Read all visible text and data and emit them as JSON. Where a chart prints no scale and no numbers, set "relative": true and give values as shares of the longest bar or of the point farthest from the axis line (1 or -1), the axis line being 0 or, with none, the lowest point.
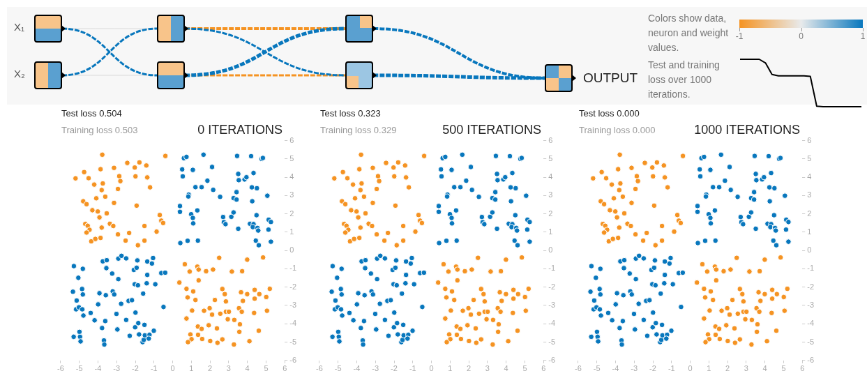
{
  "chart_data": [
    {
      "type": "other",
      "annotations": [
        "X₁",
        "X₂",
        "OUTPUT",
        "Colors show data, neuron and weight values.",
        "-1",
        "0",
        "1"
      ],
      "colors": [
        "#f59322",
        "#e8eaeb",
        "#0877bd"
      ]
    },
    {
      "type": "line",
      "relative": true,
      "title": "Test and training loss over 1000 iterations.",
      "categories": [
        null,
        null,
        null,
        null,
        null,
        null,
        null,
        null,
        null,
        null,
        null,
        null,
        null,
        null,
        null,
        null,
        null,
        null,
        null,
        null
      ],
      "series": [
        {
          "color": "#000000",
          "values": [
            1,
            1,
            1,
            1,
            0.92,
            0.68,
            0.65,
            0.65,
            0.65,
            0.65,
            0.65,
            0.64,
            0.01,
            0,
            0,
            0,
            0,
            0,
            0,
            0
          ]
        }
      ],
      "marker": "none",
      "line_style": "solid"
    },
    {
      "type": "scatter",
      "title": "Test loss 0.504",
      "subtitle": "Training loss 0.503",
      "annotations": [
        "0 ITERATIONS"
      ],
      "xlim": [
        -6,
        6
      ],
      "ylim": [
        -6,
        6
      ],
      "xticks": [
        -6,
        -5,
        -4,
        -3,
        -2,
        -1,
        0,
        1,
        2,
        3,
        4,
        5,
        6
      ],
      "yticks": [
        -6,
        -5,
        -4,
        -3,
        -2,
        -1,
        0,
        1,
        2,
        3,
        4,
        5,
        6
      ],
      "grid": false,
      "legend": false,
      "marker": "circle",
      "series": [
        {
          "color": "#f59322",
          "x": [
            -3.77,
            -0.39,
            -5.2,
            -4.74,
            -4.5,
            -4.2,
            -3.86,
            -3.74,
            -3.8,
            -3.14,
            -2.86,
            -2.8,
            -2.93,
            -2.43,
            -2.03,
            -1.78,
            -1.41,
            -1.99,
            -1.36,
            -1.21,
            -4.09,
            -4.79,
            -4.61,
            -3.61,
            -3.14,
            -4.3,
            -4.01,
            -3.92,
            -3.53,
            -1.93,
            -4.68,
            -4.55,
            -4.45,
            -4.61,
            -3.8,
            -3.36,
            -3.18,
            -2.93,
            -2.33,
            -2.52,
            -1.86,
            -1.51,
            -1.51,
            -0.86,
            -0.69,
            -0.61,
            -0.51,
            -4.36,
            -4.14,
            -3.86,
            0.65,
            0.36,
            0.91,
            1.32,
            1.39,
            1.39,
            1.79,
            2.16,
            2.49,
            3.17,
            3.72,
            3.99,
            4.84,
            0.74,
            1.1,
            0.8,
            1.22,
            2.26,
            2.66,
            2.79,
            2.85,
            3.66,
            3.99,
            4.39,
            4.64,
            5.2,
            5.01,
            4.39,
            3.76,
            1.04,
            1.68,
            1.98,
            2.11,
            2.55,
            2.85,
            3.01,
            3.55,
            3.7,
            4.36,
            5.05,
            0.74,
            2.95,
            3.3,
            3.6,
            1.35,
            1.55,
            1.93,
            2.37,
            3.57,
            4.61,
            0.95,
            1.36,
            1.01,
            0.82,
            1.58,
            2.01,
            2.4,
            2.66,
            3.28,
            4.11
          ],
          "values": [
            5.23,
            5.16,
            3.94,
            4.28,
            3.95,
            3.6,
            4.44,
            3.66,
            3.3,
            4.51,
            4.06,
            3.79,
            3.36,
            4.78,
            4.53,
            4.81,
            4.64,
            4.05,
            3.99,
            3.45,
            2.85,
            2.69,
            2.53,
            2.94,
            2.6,
            2.2,
            2.13,
            1.81,
            2.03,
            2.45,
            1.45,
            1.35,
            1.13,
            0.98,
            1.25,
            1.46,
            1.34,
            0.88,
            0.96,
            0.54,
            0.29,
            1.34,
            0.54,
            1.03,
            1.94,
            1.63,
            1.5,
            0.5,
            0.63,
            0.69,
            -0.75,
            -1.75,
            -1.15,
            -0.88,
            -1.04,
            -1.63,
            -1.13,
            -1.04,
            -0.4,
            -1.15,
            -1.13,
            -0.5,
            -0.38,
            -2.09,
            -2.23,
            -2.56,
            -2.7,
            -2.7,
            -2.1,
            -2.38,
            -2.78,
            -2.28,
            -2.38,
            -2.15,
            -2.38,
            -2.09,
            -2.54,
            -2.63,
            -2.75,
            -3.28,
            -3.29,
            -3.15,
            -3.5,
            -3.45,
            -3.34,
            -3.34,
            -3.15,
            -3.34,
            -3.41,
            -3.29,
            -3.71,
            -3.75,
            -3.79,
            -4.03,
            -4.15,
            -4.28,
            -4.08,
            -4.25,
            -4.44,
            -4.38,
            -4.58,
            -4.6,
            -4.84,
            -5.0,
            -4.83,
            -4.94,
            -5.04,
            -4.85,
            -5.13,
            -4.95
          ]
        },
        {
          "color": "#0877bd",
          "x": [
            0.6,
            0.74,
            1.65,
            3.45,
            4.2,
            4.76,
            4.83,
            0.51,
            1.08,
            2.11,
            0.54,
            3.51,
            4.33,
            3.54,
            3.85,
            3.95,
            1.86,
            1.22,
            1.55,
            2.17,
            4.24,
            4.51,
            0.86,
            0.84,
            2.54,
            3.26,
            3.42,
            3.42,
            5.07,
            4.26,
            0.39,
            0.39,
            1.32,
            0.99,
            1.08,
            1.1,
            2.7,
            2.74,
            2.83,
            3.14,
            3.26,
            4.49,
            4.14,
            4.33,
            4.29,
            4.54,
            4.58,
            3.51,
            5.14,
            5.26,
            5.13,
            5.26,
            4.45,
            4.61,
            0.41,
            0.8,
            1.35,
            -5.29,
            -4.81,
            -5.05,
            -5.34,
            -4.85,
            -4.81,
            -5.14,
            -5.17,
            -5.02,
            -4.84,
            -4.78,
            -4.39,
            -4.18,
            -5.3,
            -4.99,
            -4.96,
            -4.93,
            -3.68,
            -3.66,
            -3.78,
            -3.61,
            -3.99,
            -3.92,
            -3.58,
            -3.21,
            -3.13,
            -3.74,
            -3.53,
            -3.55,
            -3.24,
            -2.91,
            -2.91,
            -2.74,
            -2.49,
            -2.76,
            -3.01,
            -2.96,
            -2.49,
            -2.3,
            -2.36,
            -2.18,
            -1.99,
            -2.01,
            -1.84,
            -1.8,
            -1.61,
            -1.55,
            -1.49,
            -1.51,
            -1.24,
            -1.28,
            -1.01,
            -2.08,
            -1.93,
            -1.89,
            -2.03,
            -1.86,
            -1.58,
            -1.36,
            -1.11,
            -1.05,
            -1.36,
            -1.39,
            -0.93,
            -0.61,
            -0.4,
            -0.49
          ],
          "values": [
            5.04,
            5.11,
            5.23,
            5.16,
            5.15,
            5.0,
            5.05,
            4.43,
            4.4,
            4.56,
            4.05,
            4.18,
            4.23,
            3.84,
            3.88,
            4.0,
            3.81,
            3.46,
            3.46,
            3.31,
            3.45,
            3.4,
            3.05,
            2.95,
            2.93,
            2.86,
            2.78,
            3.19,
            2.99,
            2.69,
            2.43,
            2.11,
            2.19,
            1.98,
            1.78,
            1.48,
            1.83,
            1.55,
            1.44,
            1.84,
            2.08,
            1.93,
            1.46,
            1.44,
            1.28,
            1.23,
            1.09,
            1.19,
            1.68,
            1.56,
            1.14,
            0.48,
            0.54,
            0.29,
            0.41,
            0.53,
            0.54,
            -0.85,
            -1.0,
            -1.49,
            -2.25,
            -2.1,
            -2.4,
            -2.73,
            -3.21,
            -3.1,
            -3.21,
            -3.55,
            -3.41,
            -3.81,
            -4.71,
            -4.44,
            -4.71,
            -4.96,
            -4.91,
            -5.13,
            -4.23,
            -3.85,
            -2.94,
            -2.33,
            -2.44,
            -2.23,
            -2.4,
            -0.59,
            -0.53,
            -0.96,
            -1.26,
            -1.56,
            -0.44,
            -0.29,
            -0.43,
            -2.91,
            -3.46,
            -4.31,
            -3.79,
            -4.66,
            -2.75,
            -2.71,
            -3.39,
            -4.19,
            -3.96,
            -4.58,
            -5.0,
            -4.88,
            -4.63,
            -4.06,
            -4.6,
            -4.81,
            -4.38,
            -1.06,
            -0.94,
            -0.54,
            -1.84,
            -1.9,
            -2.35,
            -0.6,
            -0.71,
            -0.41,
            -1.33,
            -1.79,
            -1.84,
            -1.23,
            -1.21,
            -3.08
          ]
        }
      ]
    },
    {
      "type": "scatter",
      "title": "Test loss 0.323",
      "subtitle": "Training loss 0.329",
      "annotations": [
        "500 ITERATIONS"
      ],
      "xlim": [
        -6,
        6
      ],
      "ylim": [
        -6,
        6
      ],
      "xticks": [
        -6,
        -5,
        -4,
        -3,
        -2,
        -1,
        0,
        1,
        2,
        3,
        4,
        5,
        6
      ],
      "yticks": [
        -6,
        -5,
        -4,
        -3,
        -2,
        -1,
        0,
        1,
        2,
        3,
        4,
        5,
        6
      ],
      "grid": false,
      "legend": false,
      "marker": "circle",
      "series": [
        {
          "color": "#f59322",
          "x": [
            -3.77,
            -0.39,
            -5.2,
            -4.74,
            -4.5,
            -4.2,
            -3.86,
            -3.74,
            -3.8,
            -3.14,
            -2.86,
            -2.8,
            -2.93,
            -2.43,
            -2.03,
            -1.78,
            -1.41,
            -1.99,
            -1.36,
            -1.21,
            -4.09,
            -4.79,
            -4.61,
            -3.61,
            -3.14,
            -4.3,
            -4.01,
            -3.92,
            -3.53,
            -1.93,
            -4.68,
            -4.55,
            -4.45,
            -4.61,
            -3.8,
            -3.36,
            -3.18,
            -2.93,
            -2.33,
            -2.52,
            -1.86,
            -1.51,
            -1.51,
            -0.86,
            -0.69,
            -0.61,
            -0.51,
            -4.36,
            -4.14,
            -3.86,
            0.65,
            0.36,
            0.91,
            1.32,
            1.39,
            1.39,
            1.79,
            2.16,
            2.49,
            3.17,
            3.72,
            3.99,
            4.84,
            0.74,
            1.1,
            0.8,
            1.22,
            2.26,
            2.66,
            2.79,
            2.85,
            3.66,
            3.99,
            4.39,
            4.64,
            5.2,
            5.01,
            4.39,
            3.76,
            1.04,
            1.68,
            1.98,
            2.11,
            2.55,
            2.85,
            3.01,
            3.55,
            3.7,
            4.36,
            5.05,
            0.74,
            2.95,
            3.3,
            3.6,
            1.35,
            1.55,
            1.93,
            2.37,
            3.57,
            4.61,
            0.95,
            1.36,
            1.01,
            0.82,
            1.58,
            2.01,
            2.4,
            2.66,
            3.28,
            4.11
          ],
          "values": [
            5.23,
            5.16,
            3.94,
            4.28,
            3.95,
            3.6,
            4.44,
            3.66,
            3.3,
            4.51,
            4.06,
            3.79,
            3.36,
            4.78,
            4.53,
            4.81,
            4.64,
            4.05,
            3.99,
            3.45,
            2.85,
            2.69,
            2.53,
            2.94,
            2.6,
            2.2,
            2.13,
            1.81,
            2.03,
            2.45,
            1.45,
            1.35,
            1.13,
            0.98,
            1.25,
            1.46,
            1.34,
            0.88,
            0.96,
            0.54,
            0.29,
            1.34,
            0.54,
            1.03,
            1.94,
            1.63,
            1.5,
            0.5,
            0.63,
            0.69,
            -0.75,
            -1.75,
            -1.15,
            -0.88,
            -1.04,
            -1.63,
            -1.13,
            -1.04,
            -0.4,
            -1.15,
            -1.13,
            -0.5,
            -0.38,
            -2.09,
            -2.23,
            -2.56,
            -2.7,
            -2.7,
            -2.1,
            -2.38,
            -2.78,
            -2.28,
            -2.38,
            -2.15,
            -2.38,
            -2.09,
            -2.54,
            -2.63,
            -2.75,
            -3.28,
            -3.29,
            -3.15,
            -3.5,
            -3.45,
            -3.34,
            -3.34,
            -3.15,
            -3.34,
            -3.41,
            -3.29,
            -3.71,
            -3.75,
            -3.79,
            -4.03,
            -4.15,
            -4.28,
            -4.08,
            -4.25,
            -4.44,
            -4.38,
            -4.58,
            -4.6,
            -4.84,
            -5.0,
            -4.83,
            -4.94,
            -5.04,
            -4.85,
            -5.13,
            -4.95
          ]
        },
        {
          "color": "#0877bd",
          "x": [
            0.6,
            0.74,
            1.65,
            3.45,
            4.2,
            4.76,
            4.83,
            0.51,
            1.08,
            2.11,
            0.54,
            3.51,
            4.33,
            3.54,
            3.85,
            3.95,
            1.86,
            1.22,
            1.55,
            2.17,
            4.24,
            4.51,
            0.86,
            0.84,
            2.54,
            3.26,
            3.42,
            3.42,
            5.07,
            4.26,
            0.39,
            0.39,
            1.32,
            0.99,
            1.08,
            1.1,
            2.7,
            2.74,
            2.83,
            3.14,
            3.26,
            4.49,
            4.14,
            4.33,
            4.29,
            4.54,
            4.58,
            3.51,
            5.14,
            5.26,
            5.13,
            5.26,
            4.45,
            4.61,
            0.41,
            0.8,
            1.35,
            -5.29,
            -4.81,
            -5.05,
            -5.34,
            -4.85,
            -4.81,
            -5.14,
            -5.17,
            -5.02,
            -4.84,
            -4.78,
            -4.39,
            -4.18,
            -5.3,
            -4.99,
            -4.96,
            -4.93,
            -3.68,
            -3.66,
            -3.78,
            -3.61,
            -3.99,
            -3.92,
            -3.58,
            -3.21,
            -3.13,
            -3.74,
            -3.53,
            -3.55,
            -3.24,
            -2.91,
            -2.91,
            -2.74,
            -2.49,
            -2.76,
            -3.01,
            -2.96,
            -2.49,
            -2.3,
            -2.36,
            -2.18,
            -1.99,
            -2.01,
            -1.84,
            -1.8,
            -1.61,
            -1.55,
            -1.49,
            -1.51,
            -1.24,
            -1.28,
            -1.01,
            -2.08,
            -1.93,
            -1.89,
            -2.03,
            -1.86,
            -1.58,
            -1.36,
            -1.11,
            -1.05,
            -1.36,
            -1.39,
            -0.93,
            -0.61,
            -0.4,
            -0.49
          ],
          "values": [
            5.04,
            5.11,
            5.23,
            5.16,
            5.15,
            5.0,
            5.05,
            4.43,
            4.4,
            4.56,
            4.05,
            4.18,
            4.23,
            3.84,
            3.88,
            4.0,
            3.81,
            3.46,
            3.46,
            3.31,
            3.45,
            3.4,
            3.05,
            2.95,
            2.93,
            2.86,
            2.78,
            3.19,
            2.99,
            2.69,
            2.43,
            2.11,
            2.19,
            1.98,
            1.78,
            1.48,
            1.83,
            1.55,
            1.44,
            1.84,
            2.08,
            1.93,
            1.46,
            1.44,
            1.28,
            1.23,
            1.09,
            1.19,
            1.68,
            1.56,
            1.14,
            0.48,
            0.54,
            0.29,
            0.41,
            0.53,
            0.54,
            -0.85,
            -1.0,
            -1.49,
            -2.25,
            -2.1,
            -2.4,
            -2.73,
            -3.21,
            -3.1,
            -3.21,
            -3.55,
            -3.41,
            -3.81,
            -4.71,
            -4.44,
            -4.71,
            -4.96,
            -4.91,
            -5.13,
            -4.23,
            -3.85,
            -2.94,
            -2.33,
            -2.44,
            -2.23,
            -2.4,
            -0.59,
            -0.53,
            -0.96,
            -1.26,
            -1.56,
            -0.44,
            -0.29,
            -0.43,
            -2.91,
            -3.46,
            -4.31,
            -3.79,
            -4.66,
            -2.75,
            -2.71,
            -3.39,
            -4.19,
            -3.96,
            -4.58,
            -5.0,
            -4.88,
            -4.63,
            -4.06,
            -4.6,
            -4.81,
            -4.38,
            -1.06,
            -0.94,
            -0.54,
            -1.84,
            -1.9,
            -2.35,
            -0.6,
            -0.71,
            -0.41,
            -1.33,
            -1.79,
            -1.84,
            -1.23,
            -1.21,
            -3.08
          ]
        }
      ]
    },
    {
      "type": "scatter",
      "title": "Test loss 0.000",
      "subtitle": "Training loss 0.000",
      "annotations": [
        "1000 ITERATIONS"
      ],
      "xlim": [
        -6,
        6
      ],
      "ylim": [
        -6,
        6
      ],
      "xticks": [
        -6,
        -5,
        -4,
        -3,
        -2,
        -1,
        0,
        1,
        2,
        3,
        4,
        5,
        6
      ],
      "yticks": [
        -6,
        -5,
        -4,
        -3,
        -2,
        -1,
        0,
        1,
        2,
        3,
        4,
        5,
        6
      ],
      "grid": false,
      "legend": false,
      "marker": "circle",
      "series": [
        {
          "color": "#f59322",
          "x": [
            -3.77,
            -0.39,
            -5.2,
            -4.74,
            -4.5,
            -4.2,
            -3.86,
            -3.74,
            -3.8,
            -3.14,
            -2.86,
            -2.8,
            -2.93,
            -2.43,
            -2.03,
            -1.78,
            -1.41,
            -1.99,
            -1.36,
            -1.21,
            -4.09,
            -4.79,
            -4.61,
            -3.61,
            -3.14,
            -4.3,
            -4.01,
            -3.92,
            -3.53,
            -1.93,
            -4.68,
            -4.55,
            -4.45,
            -4.61,
            -3.8,
            -3.36,
            -3.18,
            -2.93,
            -2.33,
            -2.52,
            -1.86,
            -1.51,
            -1.51,
            -0.86,
            -0.69,
            -0.61,
            -0.51,
            -4.36,
            -4.14,
            -3.86,
            0.65,
            0.36,
            0.91,
            1.32,
            1.39,
            1.39,
            1.79,
            2.16,
            2.49,
            3.17,
            3.72,
            3.99,
            4.84,
            0.74,
            1.1,
            0.8,
            1.22,
            2.26,
            2.66,
            2.79,
            2.85,
            3.66,
            3.99,
            4.39,
            4.64,
            5.2,
            5.01,
            4.39,
            3.76,
            1.04,
            1.68,
            1.98,
            2.11,
            2.55,
            2.85,
            3.01,
            3.55,
            3.7,
            4.36,
            5.05,
            0.74,
            2.95,
            3.3,
            3.6,
            1.35,
            1.55,
            1.93,
            2.37,
            3.57,
            4.61,
            0.95,
            1.36,
            1.01,
            0.82,
            1.58,
            2.01,
            2.4,
            2.66,
            3.28,
            4.11
          ],
          "values": [
            5.23,
            5.16,
            3.94,
            4.28,
            3.95,
            3.6,
            4.44,
            3.66,
            3.3,
            4.51,
            4.06,
            3.79,
            3.36,
            4.78,
            4.53,
            4.81,
            4.64,
            4.05,
            3.99,
            3.45,
            2.85,
            2.69,
            2.53,
            2.94,
            2.6,
            2.2,
            2.13,
            1.81,
            2.03,
            2.45,
            1.45,
            1.35,
            1.13,
            0.98,
            1.25,
            1.46,
            1.34,
            0.88,
            0.96,
            0.54,
            0.29,
            1.34,
            0.54,
            1.03,
            1.94,
            1.63,
            1.5,
            0.5,
            0.63,
            0.69,
            -0.75,
            -1.75,
            -1.15,
            -0.88,
            -1.04,
            -1.63,
            -1.13,
            -1.04,
            -0.4,
            -1.15,
            -1.13,
            -0.5,
            -0.38,
            -2.09,
            -2.23,
            -2.56,
            -2.7,
            -2.7,
            -2.1,
            -2.38,
            -2.78,
            -2.28,
            -2.38,
            -2.15,
            -2.38,
            -2.09,
            -2.54,
            -2.63,
            -2.75,
            -3.28,
            -3.29,
            -3.15,
            -3.5,
            -3.45,
            -3.34,
            -3.34,
            -3.15,
            -3.34,
            -3.41,
            -3.29,
            -3.71,
            -3.75,
            -3.79,
            -4.03,
            -4.15,
            -4.28,
            -4.08,
            -4.25,
            -4.44,
            -4.38,
            -4.58,
            -4.6,
            -4.84,
            -5.0,
            -4.83,
            -4.94,
            -5.04,
            -4.85,
            -5.13,
            -4.95
          ]
        },
        {
          "color": "#0877bd",
          "x": [
            0.6,
            0.74,
            1.65,
            3.45,
            4.2,
            4.76,
            4.83,
            0.51,
            1.08,
            2.11,
            0.54,
            3.51,
            4.33,
            3.54,
            3.85,
            3.95,
            1.86,
            1.22,
            1.55,
            2.17,
            4.24,
            4.51,
            0.86,
            0.84,
            2.54,
            3.26,
            3.42,
            3.42,
            5.07,
            4.26,
            0.39,
            0.39,
            1.32,
            0.99,
            1.08,
            1.1,
            2.7,
            2.74,
            2.83,
            3.14,
            3.26,
            4.49,
            4.14,
            4.33,
            4.29,
            4.54,
            4.58,
            3.51,
            5.14,
            5.26,
            5.13,
            5.26,
            4.45,
            4.61,
            0.41,
            0.8,
            1.35,
            -5.29,
            -4.81,
            -5.05,
            -5.34,
            -4.85,
            -4.81,
            -5.14,
            -5.17,
            -5.02,
            -4.84,
            -4.78,
            -4.39,
            -4.18,
            -5.3,
            -4.99,
            -4.96,
            -4.93,
            -3.68,
            -3.66,
            -3.78,
            -3.61,
            -3.99,
            -3.92,
            -3.58,
            -3.21,
            -3.13,
            -3.74,
            -3.53,
            -3.55,
            -3.24,
            -2.91,
            -2.91,
            -2.74,
            -2.49,
            -2.76,
            -3.01,
            -2.96,
            -2.49,
            -2.3,
            -2.36,
            -2.18,
            -1.99,
            -2.01,
            -1.84,
            -1.8,
            -1.61,
            -1.55,
            -1.49,
            -1.51,
            -1.24,
            -1.28,
            -1.01,
            -2.08,
            -1.93,
            -1.89,
            -2.03,
            -1.86,
            -1.58,
            -1.36,
            -1.11,
            -1.05,
            -1.36,
            -1.39,
            -0.93,
            -0.61,
            -0.4,
            -0.49
          ],
          "values": [
            5.04,
            5.11,
            5.23,
            5.16,
            5.15,
            5.0,
            5.05,
            4.43,
            4.4,
            4.56,
            4.05,
            4.18,
            4.23,
            3.84,
            3.88,
            4.0,
            3.81,
            3.46,
            3.46,
            3.31,
            3.45,
            3.4,
            3.05,
            2.95,
            2.93,
            2.86,
            2.78,
            3.19,
            2.99,
            2.69,
            2.43,
            2.11,
            2.19,
            1.98,
            1.78,
            1.48,
            1.83,
            1.55,
            1.44,
            1.84,
            2.08,
            1.93,
            1.46,
            1.44,
            1.28,
            1.23,
            1.09,
            1.19,
            1.68,
            1.56,
            1.14,
            0.48,
            0.54,
            0.29,
            0.41,
            0.53,
            0.54,
            -0.85,
            -1.0,
            -1.49,
            -2.25,
            -2.1,
            -2.4,
            -2.73,
            -3.21,
            -3.1,
            -3.21,
            -3.55,
            -3.41,
            -3.81,
            -4.71,
            -4.44,
            -4.71,
            -4.96,
            -4.91,
            -5.13,
            -4.23,
            -3.85,
            -2.94,
            -2.33,
            -2.44,
            -2.23,
            -2.4,
            -0.59,
            -0.53,
            -0.96,
            -1.26,
            -1.56,
            -0.44,
            -0.29,
            -0.43,
            -2.91,
            -3.46,
            -4.31,
            -3.79,
            -4.66,
            -2.75,
            -2.71,
            -3.39,
            -4.19,
            -3.96,
            -4.58,
            -5.0,
            -4.88,
            -4.63,
            -4.06,
            -4.6,
            -4.81,
            -4.38,
            -1.06,
            -0.94,
            -0.54,
            -1.84,
            -1.9,
            -2.35,
            -0.6,
            -0.71,
            -0.41,
            -1.33,
            -1.79,
            -1.84,
            -1.23,
            -1.21,
            -3.08
          ]
        }
      ]
    }
  ]
}
